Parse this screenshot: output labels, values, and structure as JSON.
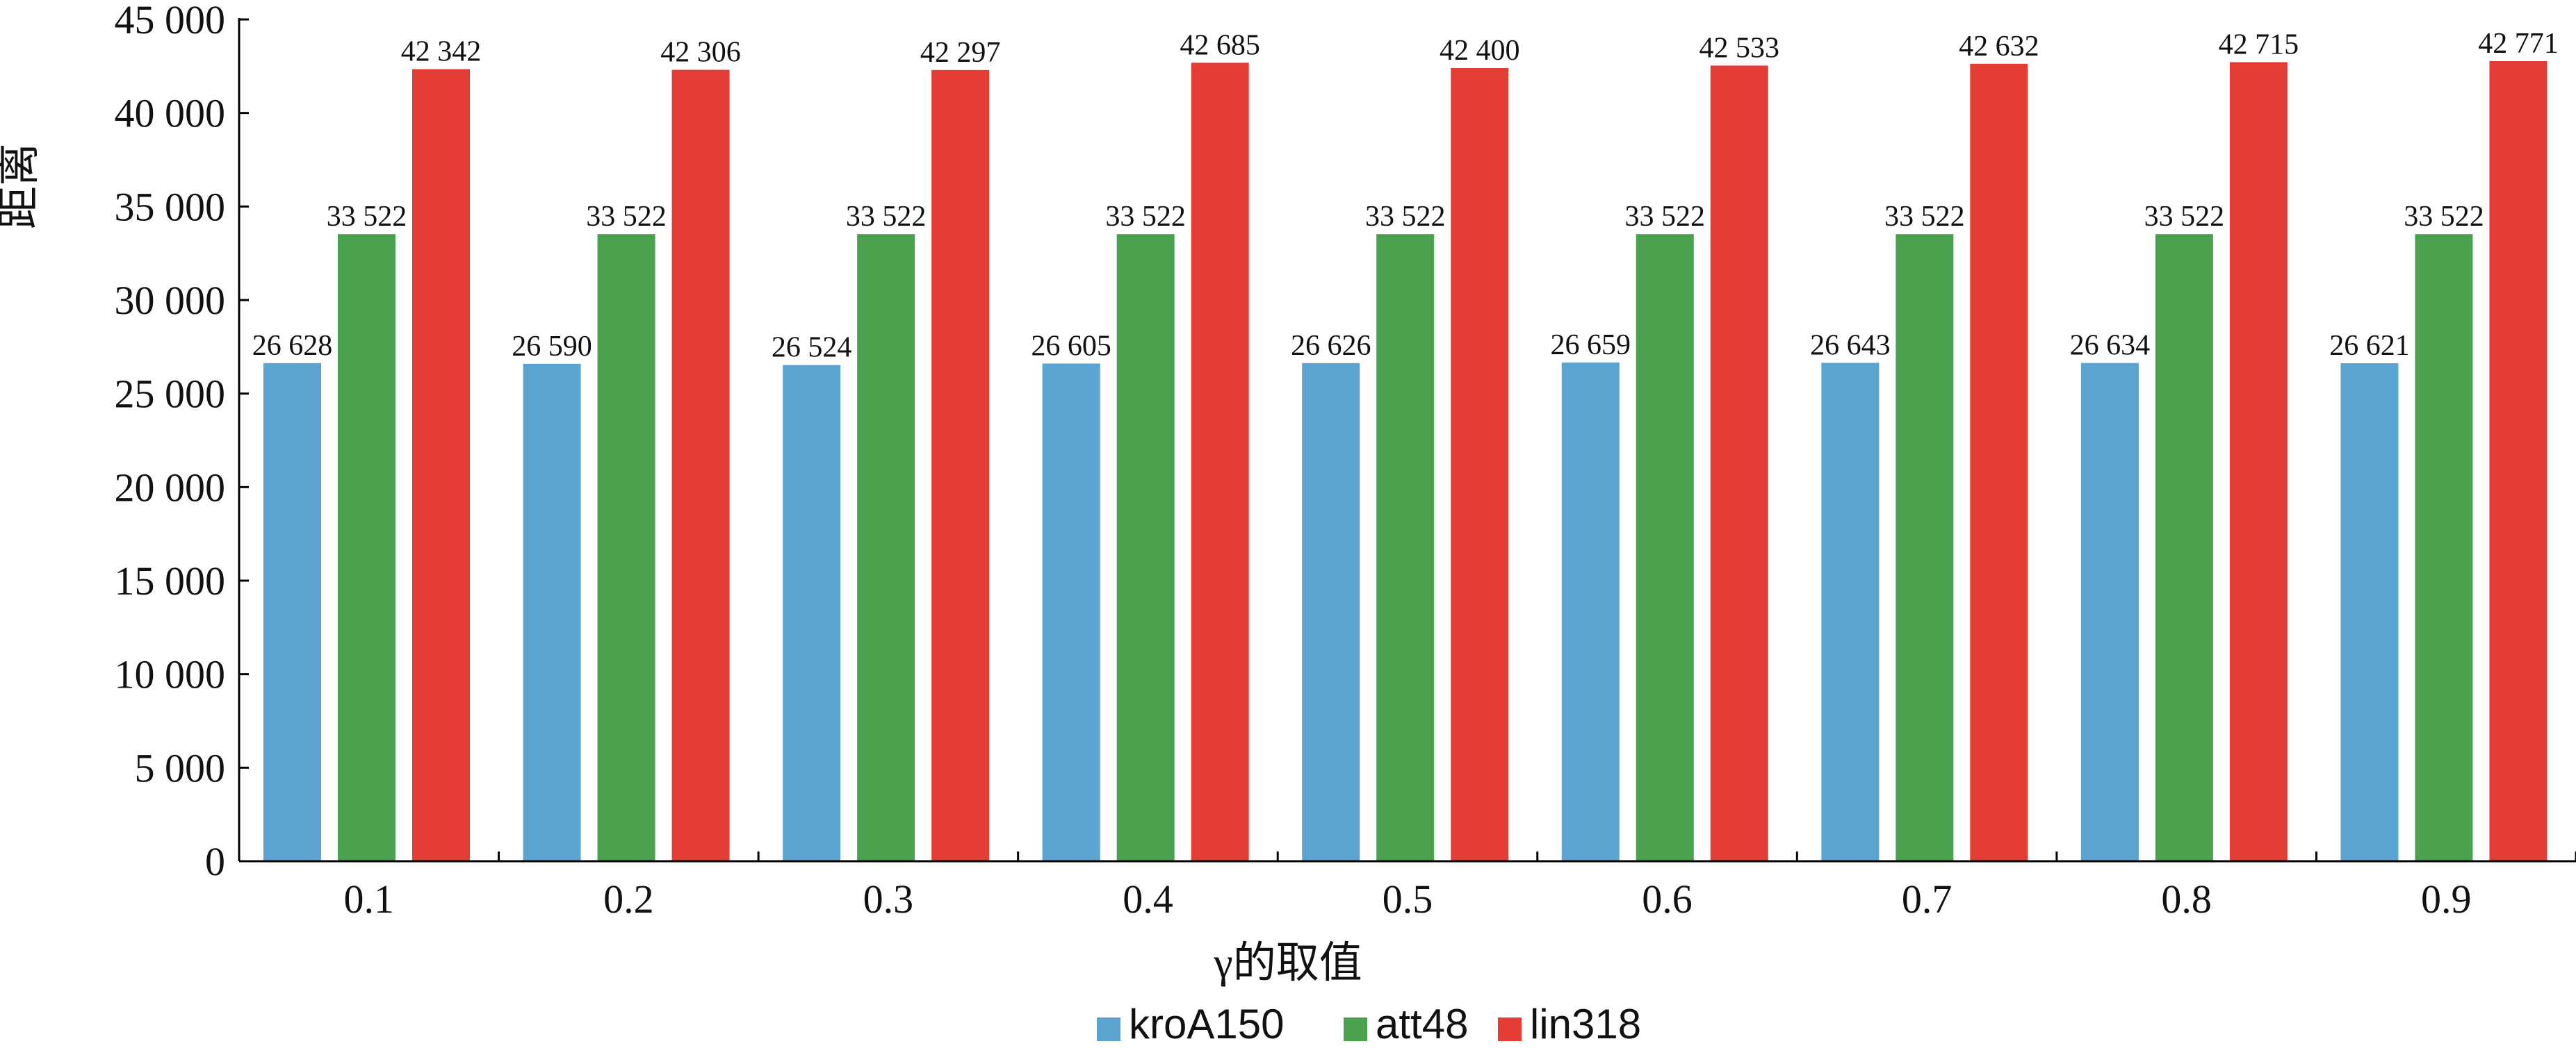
{
  "chart_data": {
    "type": "bar",
    "title": "",
    "xlabel": "γ的取值",
    "ylabel": "距离",
    "categories": [
      "0.1",
      "0.2",
      "0.3",
      "0.4",
      "0.5",
      "0.6",
      "0.7",
      "0.8",
      "0.9"
    ],
    "series": [
      {
        "name": "kroA150",
        "color": "#5ba3d0",
        "values": [
          26628,
          26590,
          26524,
          26605,
          26626,
          26659,
          26643,
          26634,
          26621
        ],
        "labels": [
          "26 628",
          "26 590",
          "26 524",
          "26 605",
          "26 626",
          "26 659",
          "26 643",
          "26 634",
          "26 621"
        ]
      },
      {
        "name": "att48",
        "color": "#4aa24e",
        "values": [
          33522,
          33522,
          33522,
          33522,
          33522,
          33522,
          33522,
          33522,
          33522
        ],
        "labels": [
          "33 522",
          "33 522",
          "33 522",
          "33 522",
          "33 522",
          "33 522",
          "33 522",
          "33 522",
          "33 522"
        ]
      },
      {
        "name": "lin318",
        "color": "#e33d36",
        "values": [
          42342,
          42306,
          42297,
          42685,
          42400,
          42533,
          42632,
          42715,
          42771
        ],
        "labels": [
          "42 342",
          "42 306",
          "42 297",
          "42 685",
          "42 400",
          "42 533",
          "42 632",
          "42 715",
          "42 771"
        ]
      }
    ],
    "ylim": [
      0,
      45000
    ],
    "yticks": [
      0,
      5000,
      10000,
      15000,
      20000,
      25000,
      30000,
      35000,
      40000,
      45000
    ],
    "ytick_labels": [
      "0",
      "5 000",
      "10 000",
      "15 000",
      "20 000",
      "25 000",
      "30 000",
      "35 000",
      "40 000",
      "45 000"
    ],
    "grid": false,
    "legend_position": "bottom-center"
  }
}
